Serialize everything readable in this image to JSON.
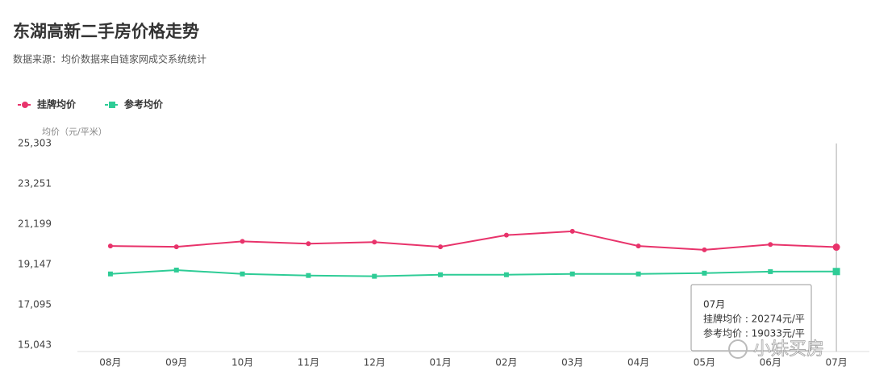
{
  "chart_data": {
    "type": "line",
    "title": "东湖高新二手房价格走势",
    "subtitle": "数据来源：均价数据来自链家网成交系统统计",
    "y_label": "均价（元/平米）",
    "categories": [
      "08月",
      "09月",
      "10月",
      "11月",
      "12月",
      "01月",
      "02月",
      "03月",
      "04月",
      "05月",
      "06月",
      "07月"
    ],
    "series": [
      {
        "name": "挂牌均价",
        "color": "#e8336b",
        "marker": "circle",
        "values": [
          20332,
          20293,
          20569,
          20450,
          20530,
          20293,
          20885,
          21083,
          20332,
          20135,
          20411,
          20274
        ]
      },
      {
        "name": "参考均价",
        "color": "#2ecc96",
        "marker": "square",
        "values": [
          18910,
          19108,
          18910,
          18831,
          18792,
          18870,
          18870,
          18910,
          18910,
          18950,
          19029,
          19033
        ]
      }
    ],
    "ylim": [
      15043,
      25303
    ],
    "yticks": [
      {
        "value": 15043,
        "label": "15,043"
      },
      {
        "value": 17095,
        "label": "17,095"
      },
      {
        "value": 19147,
        "label": "19,147"
      },
      {
        "value": 21199,
        "label": "21,199"
      },
      {
        "value": 23251,
        "label": "23,251"
      },
      {
        "value": 25303,
        "label": "25,303"
      }
    ],
    "legend": "top-left",
    "tooltip": {
      "title": "07月",
      "lines": [
        "挂牌均价 : 20274元/平",
        "参考均价 : 19033元/平"
      ]
    },
    "watermark": "小妹买房"
  }
}
